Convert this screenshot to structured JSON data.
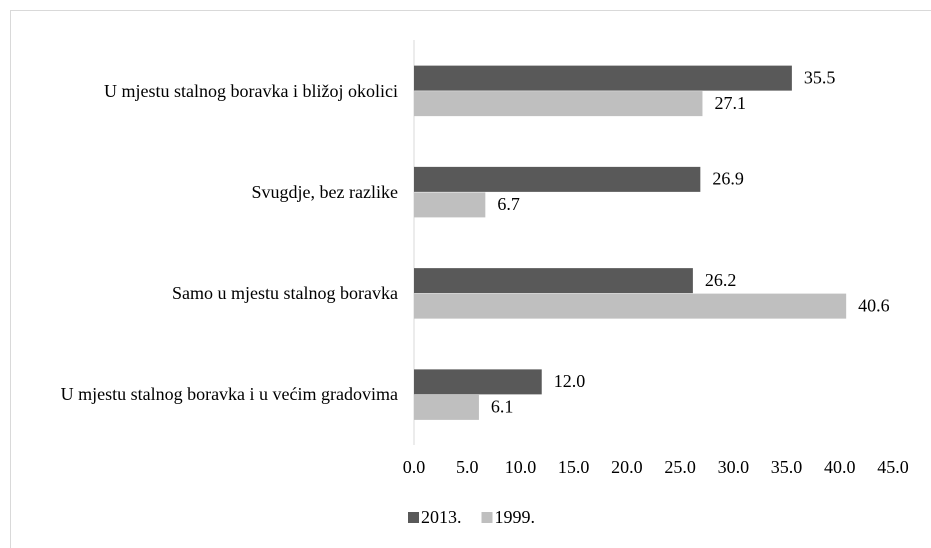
{
  "chart_data": {
    "type": "hbar",
    "categories": [
      "U mjestu stalnog boravka i bližoj okolici",
      "Svugdje, bez razlike",
      "Samo u mjestu stalnog boravka",
      "U mjestu stalnog boravka i u većim gradovima"
    ],
    "series": [
      {
        "name": "2013.",
        "color": "#595959",
        "values": [
          35.5,
          26.9,
          26.2,
          12.0
        ],
        "value_labels": [
          "35.5",
          "26.9",
          "26.2",
          "12.0"
        ]
      },
      {
        "name": "1999.",
        "color": "#bfbfbf",
        "values": [
          27.1,
          6.7,
          40.6,
          6.1
        ],
        "value_labels": [
          "27.1",
          "6.7",
          "40.6",
          "6.1"
        ]
      }
    ],
    "xlim": [
      0,
      45
    ],
    "xticks": [
      {
        "value": 0,
        "label": "0.0"
      },
      {
        "value": 5,
        "label": "5.0"
      },
      {
        "value": 10,
        "label": "10.0"
      },
      {
        "value": 15,
        "label": "15.0"
      },
      {
        "value": 20,
        "label": "20.0"
      },
      {
        "value": 25,
        "label": "25.0"
      },
      {
        "value": 30,
        "label": "30.0"
      },
      {
        "value": 35,
        "label": "35.0"
      },
      {
        "value": 40,
        "label": "40.0"
      },
      {
        "value": 45,
        "label": "45.0"
      }
    ],
    "grid": false,
    "legend": "bottom"
  }
}
